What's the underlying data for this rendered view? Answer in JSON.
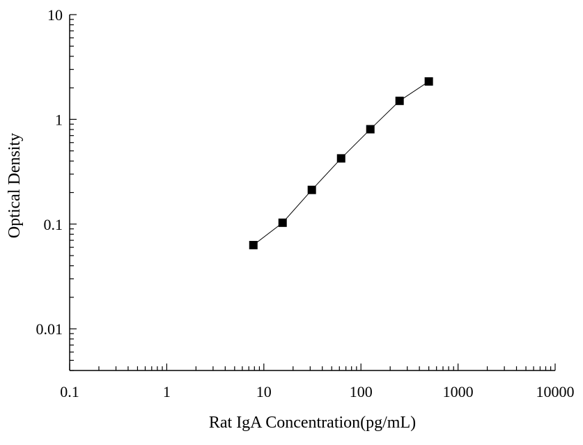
{
  "chart_data": {
    "type": "scatter",
    "title": "",
    "xlabel": "Rat IgA Concentration(pg/mL)",
    "ylabel": "Optical Density",
    "x_scale": "log",
    "y_scale": "log",
    "xlim": [
      0.1,
      10000
    ],
    "ylim": [
      0.004,
      10
    ],
    "x_ticks": [
      0.1,
      1,
      10,
      100,
      1000,
      10000
    ],
    "x_tick_labels": [
      "0.1",
      "1",
      "10",
      "100",
      "1000",
      "10000"
    ],
    "y_ticks": [
      0.01,
      0.1,
      1,
      10
    ],
    "y_tick_labels": [
      "0.01",
      "0.1",
      "1",
      "10"
    ],
    "grid": false,
    "series": [
      {
        "marker": "square",
        "connected": true,
        "color": "#000000",
        "x": [
          7.8,
          15.6,
          31.2,
          62.5,
          125,
          250,
          500
        ],
        "y": [
          0.063,
          0.103,
          0.212,
          0.424,
          0.805,
          1.502,
          2.301
        ]
      }
    ]
  }
}
